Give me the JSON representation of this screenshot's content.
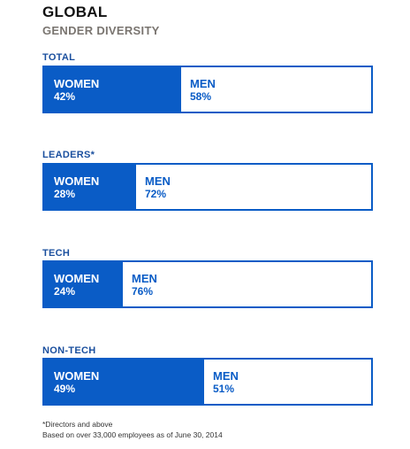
{
  "header": {
    "title": "GLOBAL",
    "subtitle": "GENDER DIVERSITY"
  },
  "colors": {
    "women_fill": "#0a5cc6",
    "men_fill": "#ffffff",
    "border": "#0a5cc6",
    "label": "#1a4f9e"
  },
  "chart_data": {
    "type": "bar",
    "stacked": true,
    "orientation": "horizontal",
    "title": "GLOBAL",
    "subtitle": "GENDER DIVERSITY",
    "categories": [
      "TOTAL",
      "LEADERS*",
      "TECH",
      "NON-TECH"
    ],
    "series": [
      {
        "name": "WOMEN",
        "values": [
          42,
          28,
          24,
          49
        ],
        "labels": [
          "42%",
          "28%",
          "24%",
          "49%"
        ]
      },
      {
        "name": "MEN",
        "values": [
          58,
          72,
          76,
          51
        ],
        "labels": [
          "58%",
          "72%",
          "76%",
          "51%"
        ]
      }
    ],
    "unit": "%"
  },
  "footnotes": {
    "line1": "*Directors and above",
    "line2": "Based on over 33,000 employees as of June 30, 2014"
  }
}
